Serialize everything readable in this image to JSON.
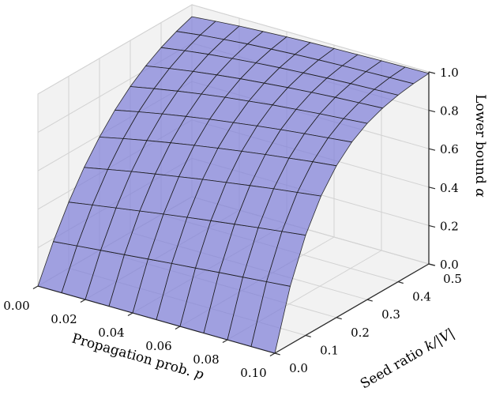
{
  "chart_data": {
    "type": "surface",
    "title": "",
    "xlabel": "Propagation prob. p",
    "ylabel": "Seed ratio k/|V|",
    "zlabel": "Lower bound α",
    "xlabel_parts": [
      {
        "t": "Propagation prob. ",
        "italic": false
      },
      {
        "t": "p",
        "italic": true
      }
    ],
    "ylabel_parts": [
      {
        "t": "Seed ratio ",
        "italic": false
      },
      {
        "t": "k/|V|",
        "italic": true
      }
    ],
    "zlabel_parts": [
      {
        "t": "Lower bound ",
        "italic": false
      },
      {
        "t": "α",
        "italic": true
      }
    ],
    "xlim": [
      0,
      0.1
    ],
    "ylim": [
      0,
      0.5
    ],
    "zlim": [
      0,
      1.0
    ],
    "grid": true,
    "x_ticks": {
      "values": [
        0,
        0.02,
        0.04,
        0.06,
        0.08,
        0.1
      ],
      "labels": [
        "0.00",
        "0.02",
        "0.04",
        "0.06",
        "0.08",
        "0.10"
      ]
    },
    "y_ticks": {
      "values": [
        0,
        0.1,
        0.2,
        0.3,
        0.4,
        0.5
      ],
      "labels": [
        "0.0",
        "0.1",
        "0.2",
        "0.3",
        "0.4",
        "0.5"
      ]
    },
    "z_ticks": {
      "values": [
        0,
        0.2,
        0.4,
        0.6,
        0.8,
        1.0
      ],
      "labels": [
        "0.0",
        "0.2",
        "0.4",
        "0.6",
        "0.8",
        "1.0"
      ]
    },
    "x": [
      0,
      0.01,
      0.02,
      0.03,
      0.04,
      0.05,
      0.06,
      0.07,
      0.08,
      0.09,
      0.1
    ],
    "y": [
      0,
      0.05,
      0.1,
      0.15,
      0.2,
      0.25,
      0.3,
      0.35,
      0.4,
      0.45,
      0.5
    ],
    "z": [
      [
        0,
        0.185,
        0.344,
        0.478,
        0.59,
        0.684,
        0.76,
        0.821,
        0.87,
        0.908,
        0.938
      ],
      [
        0,
        0.198,
        0.364,
        0.503,
        0.617,
        0.71,
        0.784,
        0.843,
        0.889,
        0.924,
        0.949
      ],
      [
        0,
        0.21,
        0.384,
        0.527,
        0.642,
        0.734,
        0.806,
        0.862,
        0.905,
        0.936,
        0.959
      ],
      [
        0,
        0.222,
        0.403,
        0.549,
        0.665,
        0.756,
        0.826,
        0.879,
        0.918,
        0.947,
        0.966
      ],
      [
        0,
        0.234,
        0.422,
        0.57,
        0.687,
        0.776,
        0.844,
        0.894,
        0.93,
        0.955,
        0.973
      ],
      [
        0,
        0.246,
        0.44,
        0.591,
        0.707,
        0.794,
        0.859,
        0.906,
        0.94,
        0.963,
        0.978
      ],
      [
        0,
        0.257,
        0.457,
        0.61,
        0.726,
        0.811,
        0.874,
        0.918,
        0.948,
        0.969,
        0.982
      ],
      [
        0,
        0.269,
        0.474,
        0.629,
        0.744,
        0.827,
        0.886,
        0.928,
        0.956,
        0.974,
        0.985
      ],
      [
        0,
        0.28,
        0.491,
        0.647,
        0.76,
        0.841,
        0.898,
        0.937,
        0.962,
        0.978,
        0.988
      ],
      [
        0,
        0.291,
        0.506,
        0.663,
        0.776,
        0.854,
        0.908,
        0.944,
        0.967,
        0.982,
        0.99
      ],
      [
        0,
        0.302,
        0.522,
        0.679,
        0.79,
        0.867,
        0.918,
        0.951,
        0.972,
        0.985,
        0.992
      ]
    ],
    "colors": {
      "background": "#ffffff",
      "surface_fill": "#8080d8",
      "surface_fill_alpha": 0.72,
      "surface_edge": "#1a1a1a",
      "pane_fill": "#f2f2f2",
      "pane_edge": "#cfcfcf",
      "grid_line": "#d2d2d2",
      "axis_line": "#2b2b2b",
      "tick_text": "#000000"
    }
  }
}
